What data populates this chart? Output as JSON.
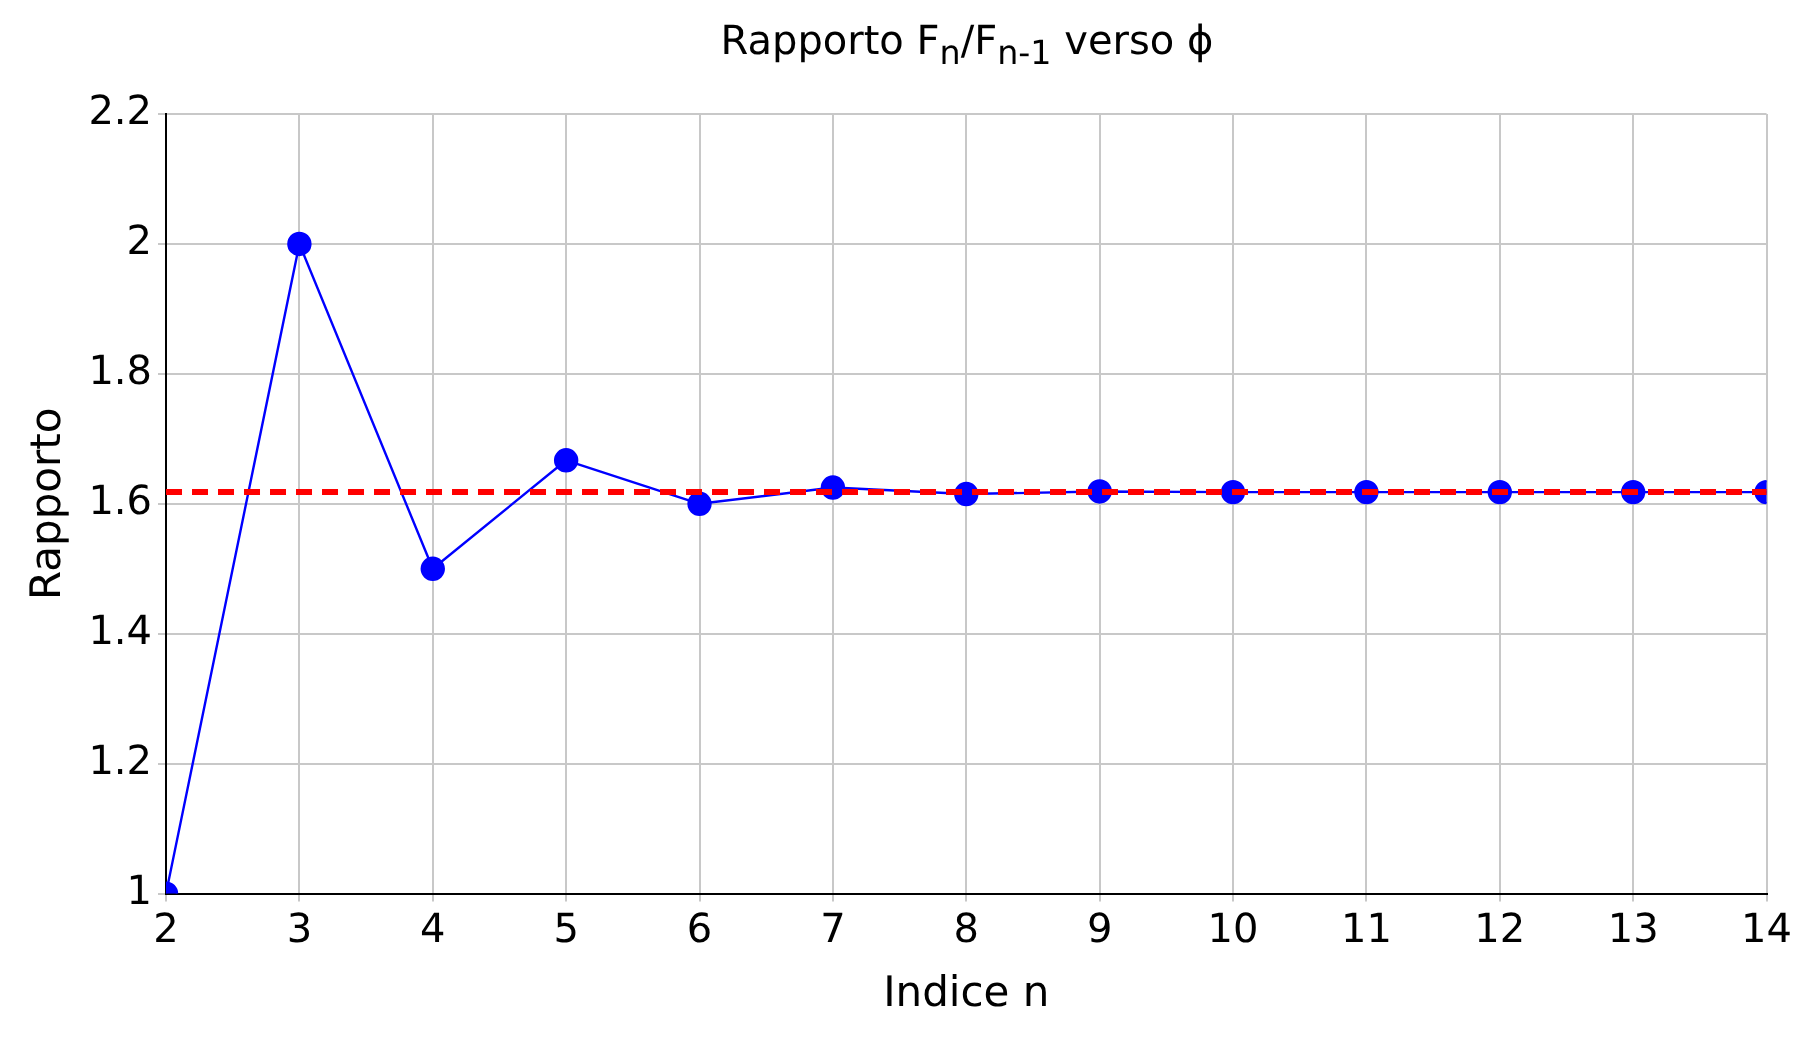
{
  "chart_data": {
    "type": "line",
    "title": "Rapporto F$_{n}$/F$_{n-1}$ verso ϕ",
    "xlabel": "Indice n",
    "ylabel": "Rapporto",
    "x": [
      2,
      3,
      4,
      5,
      6,
      7,
      8,
      9,
      10,
      11,
      12,
      13,
      14
    ],
    "series": [
      {
        "color": "#0000ff",
        "values": [
          1,
          2,
          1.5,
          1.667,
          1.6,
          1.625,
          1.615,
          1.619,
          1.618,
          1.618,
          1.618,
          1.618,
          1.618
        ]
      }
    ],
    "xlim": [
      2,
      14
    ],
    "xticks": [
      2,
      3,
      4,
      5,
      6,
      7,
      8,
      9,
      10,
      11,
      12,
      13,
      14
    ],
    "ylim": [
      1,
      2.2
    ],
    "yticks": [
      1,
      1.2,
      1.4,
      1.6,
      1.8,
      2,
      2.2
    ],
    "ref_lines": [
      {
        "axis": "y",
        "value": 1.618,
        "color": "#ff0000",
        "line_style": "dashed"
      }
    ],
    "grid": true,
    "marker": "circle",
    "line_style": "solid",
    "legend": false
  }
}
